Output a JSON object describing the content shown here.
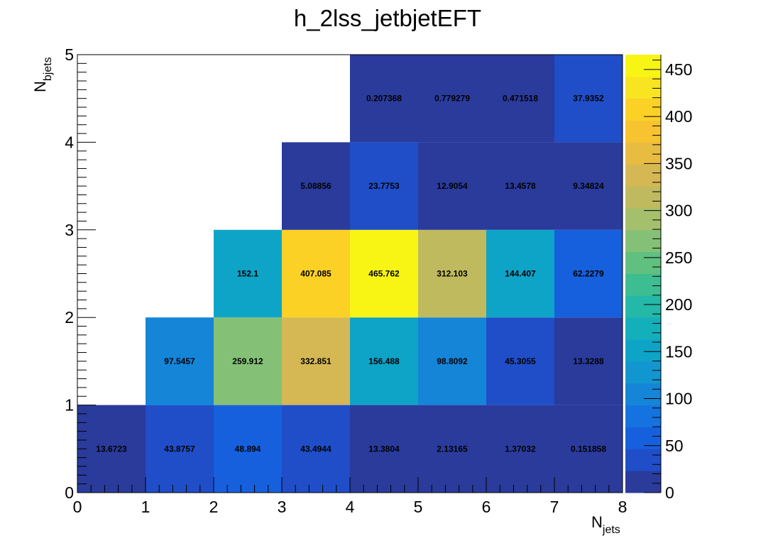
{
  "chart_data": {
    "type": "heatmap",
    "title": "h_2lss_jetbjetEFT",
    "xlabel": {
      "main": "N",
      "sub": "jets"
    },
    "ylabel": {
      "main": "N",
      "sub": "bjets"
    },
    "xlim": [
      0,
      8
    ],
    "ylim": [
      0,
      5
    ],
    "x_ticks": [
      "0",
      "1",
      "2",
      "3",
      "4",
      "5",
      "6",
      "7",
      "8"
    ],
    "y_ticks": [
      "0",
      "1",
      "2",
      "3",
      "4",
      "5"
    ],
    "x_bins": [
      [
        0,
        1
      ],
      [
        1,
        2
      ],
      [
        2,
        3
      ],
      [
        3,
        4
      ],
      [
        4,
        5
      ],
      [
        5,
        6
      ],
      [
        6,
        7
      ],
      [
        7,
        8
      ]
    ],
    "y_bins": [
      [
        0,
        1
      ],
      [
        1,
        2
      ],
      [
        2,
        3
      ],
      [
        3,
        4
      ],
      [
        4,
        5
      ]
    ],
    "cells": [
      {
        "x": 0,
        "y": 0,
        "value": 13.6723,
        "label": "13.6723"
      },
      {
        "x": 1,
        "y": 0,
        "value": 43.8757,
        "label": "43.8757"
      },
      {
        "x": 2,
        "y": 0,
        "value": 48.894,
        "label": "48.894"
      },
      {
        "x": 3,
        "y": 0,
        "value": 43.4944,
        "label": "43.4944"
      },
      {
        "x": 4,
        "y": 0,
        "value": 13.3804,
        "label": "13.3804"
      },
      {
        "x": 5,
        "y": 0,
        "value": 2.13165,
        "label": "2.13165"
      },
      {
        "x": 6,
        "y": 0,
        "value": 1.37032,
        "label": "1.37032"
      },
      {
        "x": 7,
        "y": 0,
        "value": 0.151858,
        "label": "0.151858"
      },
      {
        "x": 1,
        "y": 1,
        "value": 97.5457,
        "label": "97.5457"
      },
      {
        "x": 2,
        "y": 1,
        "value": 259.912,
        "label": "259.912"
      },
      {
        "x": 3,
        "y": 1,
        "value": 332.851,
        "label": "332.851"
      },
      {
        "x": 4,
        "y": 1,
        "value": 156.488,
        "label": "156.488"
      },
      {
        "x": 5,
        "y": 1,
        "value": 98.8092,
        "label": "98.8092"
      },
      {
        "x": 6,
        "y": 1,
        "value": 45.3055,
        "label": "45.3055"
      },
      {
        "x": 7,
        "y": 1,
        "value": 13.3288,
        "label": "13.3288"
      },
      {
        "x": 2,
        "y": 2,
        "value": 152.1,
        "label": "152.1"
      },
      {
        "x": 3,
        "y": 2,
        "value": 407.085,
        "label": "407.085"
      },
      {
        "x": 4,
        "y": 2,
        "value": 465.762,
        "label": "465.762"
      },
      {
        "x": 5,
        "y": 2,
        "value": 312.103,
        "label": "312.103"
      },
      {
        "x": 6,
        "y": 2,
        "value": 144.407,
        "label": "144.407"
      },
      {
        "x": 7,
        "y": 2,
        "value": 62.2279,
        "label": "62.2279"
      },
      {
        "x": 3,
        "y": 3,
        "value": 5.08856,
        "label": "5.08856"
      },
      {
        "x": 4,
        "y": 3,
        "value": 23.7753,
        "label": "23.7753"
      },
      {
        "x": 5,
        "y": 3,
        "value": 12.9054,
        "label": "12.9054"
      },
      {
        "x": 6,
        "y": 3,
        "value": 13.4578,
        "label": "13.4578"
      },
      {
        "x": 7,
        "y": 3,
        "value": 9.34824,
        "label": "9.34824"
      },
      {
        "x": 4,
        "y": 4,
        "value": 0.207368,
        "label": "0.207368"
      },
      {
        "x": 5,
        "y": 4,
        "value": 0.779279,
        "label": "0.779279"
      },
      {
        "x": 6,
        "y": 4,
        "value": 0.471518,
        "label": "0.471518"
      },
      {
        "x": 7,
        "y": 4,
        "value": 37.9352,
        "label": "37.9352"
      }
    ],
    "colorbar": {
      "range": [
        0,
        465.762
      ],
      "ticks": [
        "0",
        "50",
        "100",
        "150",
        "200",
        "250",
        "300",
        "350",
        "400",
        "450"
      ],
      "palette": [
        "#2a3b9c",
        "#1f4ec8",
        "#1760dd",
        "#1573e0",
        "#1585d8",
        "#1296cf",
        "#0ea4c8",
        "#13b0bc",
        "#23b8a8",
        "#3dbd92",
        "#5fc080",
        "#84c176",
        "#a5c06c",
        "#bfba5e",
        "#d5b853",
        "#e8bc41",
        "#f7c331",
        "#fbd125",
        "#f9e421",
        "#f8f515"
      ]
    },
    "grid": false,
    "legend": "colorbar-right"
  }
}
